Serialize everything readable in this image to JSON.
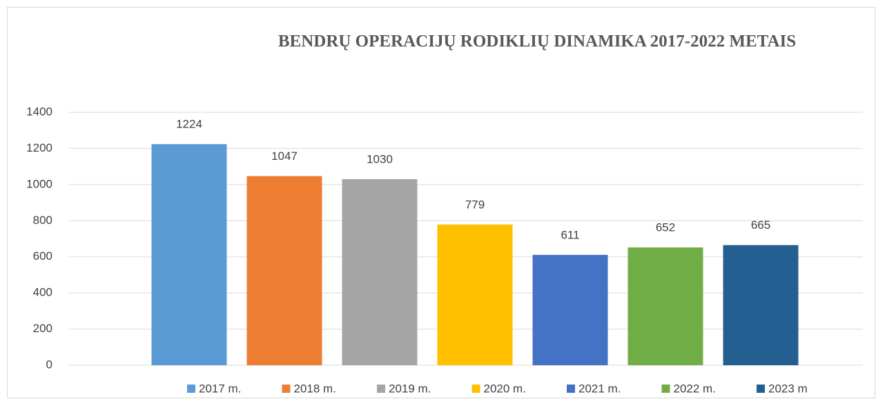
{
  "chart_data": {
    "type": "bar",
    "title": "BENDRŲ OPERACIJŲ  RODIKLIŲ DINAMIKA  2017-2022 METAIS",
    "categories": [
      null
    ],
    "series": [
      {
        "name": "2017 m.",
        "color": "#5b9bd5",
        "values": [
          1224
        ]
      },
      {
        "name": "2018 m.",
        "color": "#ed7d31",
        "values": [
          1047
        ]
      },
      {
        "name": "2019 m.",
        "color": "#a5a5a5",
        "values": [
          1030
        ]
      },
      {
        "name": "2020 m.",
        "color": "#ffc000",
        "values": [
          779
        ]
      },
      {
        "name": "2021 m.",
        "color": "#4472c4",
        "values": [
          611
        ]
      },
      {
        "name": "2022 m.",
        "color": "#70ad47",
        "values": [
          652
        ]
      },
      {
        "name": "2023 m",
        "color": "#255e91",
        "values": [
          665
        ]
      }
    ],
    "ylim": [
      0,
      1400
    ],
    "yticks": [
      0,
      200,
      400,
      600,
      800,
      1000,
      1200,
      1400
    ],
    "grid": true,
    "legend": "bottom",
    "data_labels": true
  }
}
